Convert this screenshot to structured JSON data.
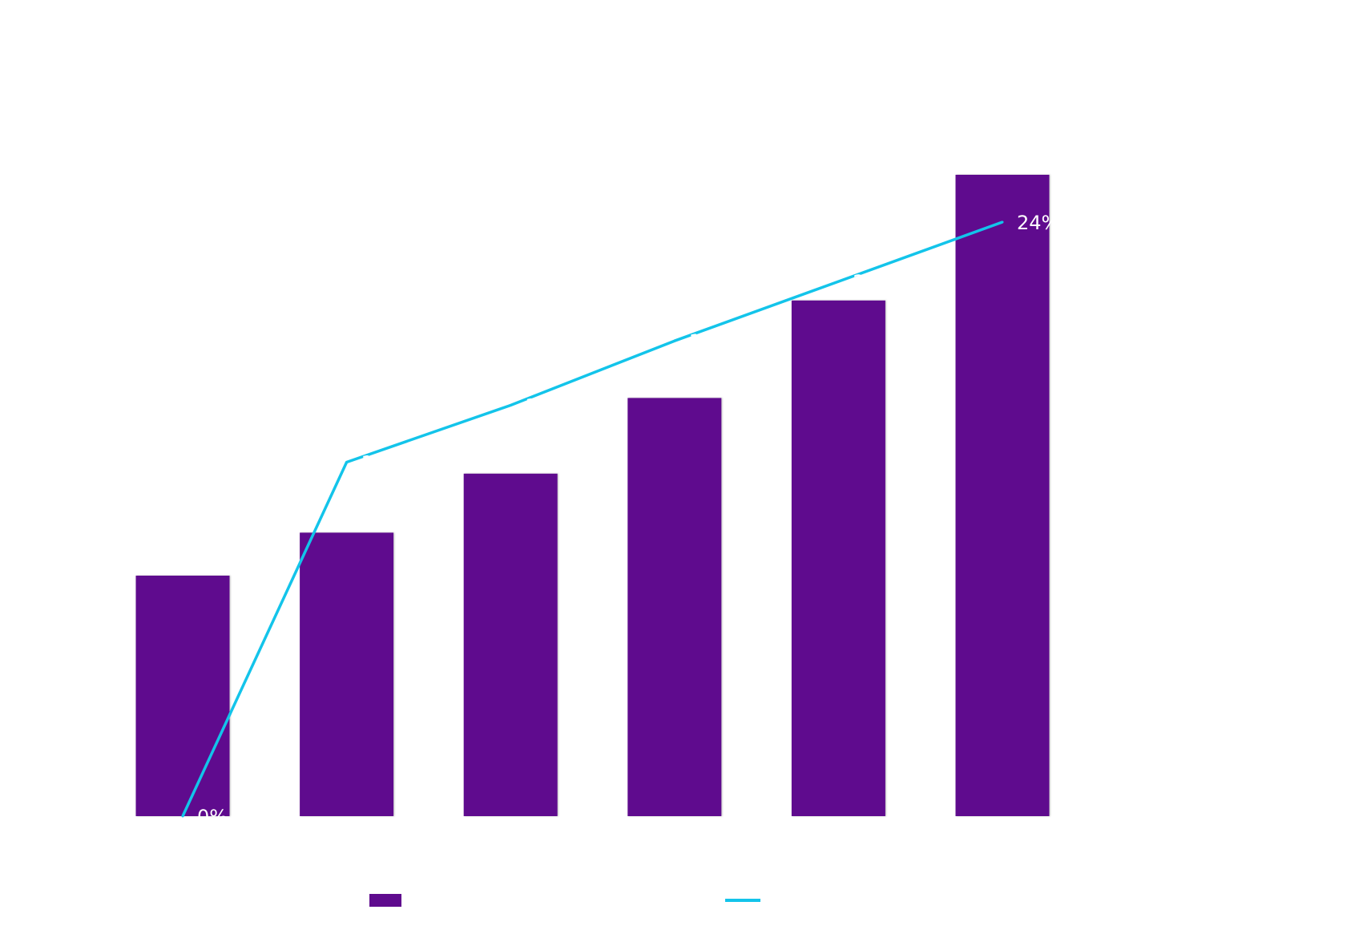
{
  "chart_data": {
    "type": "bar",
    "categories": [
      "",
      "",
      "",
      "",
      "",
      ""
    ],
    "title": "",
    "xlabel": "",
    "ylabel": "",
    "grid": false,
    "legend_position": "bottom",
    "series": [
      {
        "type": "bar",
        "color": "#5f0b8e",
        "values": [
          37.5,
          44.2,
          53.4,
          65.2,
          80.4,
          100
        ]
      },
      {
        "type": "line",
        "color": "#13c4ea",
        "values": [
          0,
          14.3,
          16.6,
          19.2,
          21.6,
          24
        ],
        "labels": [
          "0%",
          "14%",
          "17%",
          "19%",
          "22%",
          "24%"
        ]
      }
    ],
    "ylim_bars": [
      0,
      100
    ],
    "ylim_line": [
      0,
      24
    ]
  }
}
